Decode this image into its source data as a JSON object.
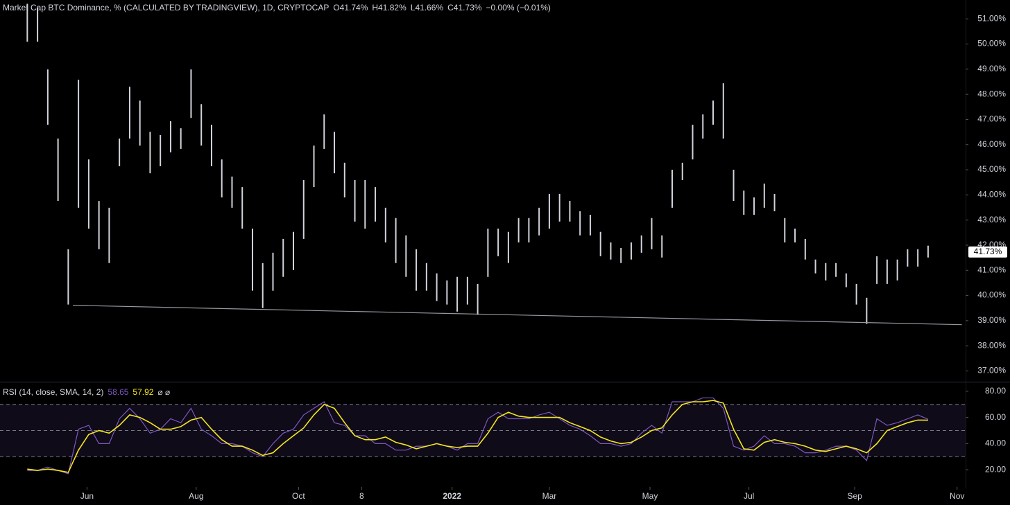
{
  "chart_data": [
    {
      "type": "ohlc",
      "title": "Market Cap BTC Dominance, % (CALCULATED BY TRADINGVIEW), 1D, CRYPTOCAP",
      "ohlc_labels": [
        "O41.74%",
        "H41.82%",
        "L41.66%",
        "C41.73%"
      ],
      "change_label": "−0.00% (−0.01%)",
      "color": "#d1d4dc",
      "x": [
        16,
        22,
        28,
        34,
        40,
        46,
        52,
        58,
        64,
        70,
        76,
        82,
        88,
        94,
        100,
        106,
        112,
        118,
        124,
        130,
        136,
        142,
        148,
        154,
        160,
        166,
        172,
        178,
        184,
        190,
        196,
        202,
        208,
        214,
        220,
        226,
        232,
        238,
        244,
        250,
        256,
        262,
        268,
        274,
        280,
        286,
        292,
        298,
        304,
        310,
        316,
        322,
        328,
        334,
        340,
        346,
        352,
        358,
        364,
        370,
        376,
        382,
        388,
        394,
        400,
        406,
        412,
        418,
        424,
        430,
        436,
        442,
        448,
        454,
        460,
        466,
        472,
        478,
        484,
        490,
        496,
        502,
        508,
        514,
        520,
        526,
        532,
        538,
        544
      ],
      "high": [
        51.6,
        51.46,
        48.99,
        46.24,
        41.84,
        48.58,
        45.41,
        43.76,
        43.49,
        46.24,
        48.3,
        47.75,
        46.51,
        46.38,
        46.93,
        46.65,
        48.99,
        47.61,
        46.79,
        45.41,
        44.73,
        44.31,
        42.66,
        41.29,
        41.7,
        42.25,
        42.53,
        44.59,
        45.96,
        47.2,
        46.51,
        45.28,
        44.59,
        44.59,
        44.31,
        43.49,
        43.08,
        42.39,
        41.84,
        41.29,
        40.88,
        40.6,
        40.74,
        40.74,
        40.46,
        42.66,
        42.66,
        42.53,
        43.08,
        43.08,
        43.49,
        44.04,
        44.04,
        43.76,
        43.35,
        43.21,
        42.53,
        42.11,
        41.89,
        42.11,
        42.39,
        43.08,
        42.39,
        45.0,
        45.28,
        46.79,
        47.2,
        47.75,
        48.44,
        45.0,
        44.17,
        43.9,
        44.45,
        44.04,
        43.08,
        42.66,
        42.25,
        41.43,
        41.29,
        41.29,
        40.88,
        40.46,
        39.91,
        41.56,
        41.43,
        41.43,
        41.84,
        41.84,
        41.98
      ],
      "low": [
        50.09,
        50.09,
        46.79,
        43.76,
        39.64,
        43.49,
        42.66,
        41.84,
        41.29,
        45.14,
        46.24,
        45.96,
        44.86,
        45.14,
        45.69,
        45.83,
        47.06,
        45.96,
        45.14,
        43.9,
        43.49,
        42.66,
        40.19,
        39.5,
        40.19,
        40.74,
        41.01,
        42.25,
        44.31,
        45.83,
        44.86,
        43.9,
        42.94,
        42.66,
        42.94,
        42.11,
        41.29,
        40.74,
        40.19,
        40.19,
        39.78,
        39.64,
        39.36,
        39.64,
        39.23,
        40.74,
        41.56,
        41.29,
        42.11,
        42.11,
        42.39,
        42.66,
        42.94,
        42.94,
        42.39,
        42.39,
        41.56,
        41.43,
        41.29,
        41.43,
        41.7,
        41.84,
        41.51,
        43.49,
        44.59,
        45.41,
        46.24,
        46.79,
        46.24,
        43.76,
        43.21,
        43.21,
        43.49,
        43.35,
        42.11,
        42.11,
        41.43,
        40.88,
        40.6,
        40.74,
        40.33,
        39.64,
        38.87,
        40.46,
        40.46,
        40.6,
        41.15,
        41.15,
        41.51
      ],
      "xlim": [
        0,
        566
      ],
      "ylim": [
        36.6,
        51.75
      ],
      "yticks": [
        {
          "value": 37,
          "label": "37.00%"
        },
        {
          "value": 38,
          "label": "38.00%"
        },
        {
          "value": 39,
          "label": "39.00%"
        },
        {
          "value": 40,
          "label": "40.00%"
        },
        {
          "value": 41,
          "label": "41.00%"
        },
        {
          "value": 42,
          "label": "42.00%"
        },
        {
          "value": 43,
          "label": "43.00%"
        },
        {
          "value": 44,
          "label": "44.00%"
        },
        {
          "value": 45,
          "label": "45.00%"
        },
        {
          "value": 46,
          "label": "46.00%"
        },
        {
          "value": 47,
          "label": "47.00%"
        },
        {
          "value": 48,
          "label": "48.00%"
        },
        {
          "value": 49,
          "label": "49.00%"
        },
        {
          "value": 50,
          "label": "50.00%"
        },
        {
          "value": 51,
          "label": "51.00%"
        }
      ],
      "last_price": {
        "value": 41.73,
        "label": "41.73%"
      },
      "trendline": {
        "x": [
          42.7,
          563.8
        ],
        "y": [
          39.61,
          38.84
        ],
        "color": "#9598a1"
      }
    },
    {
      "type": "line",
      "title": "RSI (14, close, SMA, 14, 2)",
      "legend_values": [
        58.65,
        57.92
      ],
      "legend_icons": "⌀ ⌀",
      "x": [
        16,
        22,
        28,
        34,
        40,
        46,
        52,
        58,
        64,
        70,
        76,
        82,
        88,
        94,
        100,
        106,
        112,
        118,
        124,
        130,
        136,
        142,
        148,
        154,
        160,
        166,
        172,
        178,
        184,
        190,
        196,
        202,
        208,
        214,
        220,
        226,
        232,
        238,
        244,
        250,
        256,
        262,
        268,
        274,
        280,
        286,
        292,
        298,
        304,
        310,
        316,
        322,
        328,
        334,
        340,
        346,
        352,
        358,
        364,
        370,
        376,
        382,
        388,
        394,
        400,
        406,
        412,
        418,
        424,
        430,
        436,
        442,
        448,
        454,
        460,
        466,
        472,
        478,
        484,
        490,
        496,
        502,
        508,
        514,
        520,
        526,
        532,
        538,
        544
      ],
      "series": [
        {
          "color": "#7e57c2",
          "values": [
            19.5,
            19.5,
            22,
            19.5,
            17,
            51,
            54,
            40,
            40,
            59,
            67,
            59,
            48,
            51,
            59,
            56,
            67,
            51,
            46,
            40,
            40,
            38,
            33,
            30,
            40,
            48,
            51,
            62,
            67,
            72,
            56,
            54,
            46,
            46,
            40,
            40,
            35,
            35,
            38,
            38,
            40,
            38,
            35,
            40,
            40,
            59,
            64,
            59,
            59,
            59,
            62,
            64,
            59,
            54,
            51,
            46,
            40,
            40,
            38,
            40,
            48,
            54,
            48,
            72,
            72,
            72,
            75,
            75,
            67,
            38,
            35,
            38,
            46,
            40,
            40,
            38,
            33,
            33,
            35,
            38,
            38,
            35,
            27,
            59,
            54,
            56,
            59,
            62,
            58.65
          ]
        },
        {
          "color": "#f5e71e",
          "values": [
            20.5,
            19.5,
            20.5,
            19.5,
            18,
            35,
            47,
            50,
            48,
            54,
            62,
            60,
            56,
            51,
            51,
            53,
            58,
            60,
            51,
            43,
            38,
            38,
            35,
            31,
            33,
            40,
            46,
            52,
            62,
            70,
            67,
            56,
            46,
            43,
            43,
            45,
            41,
            39,
            36,
            38,
            40,
            38,
            37,
            38,
            38,
            48,
            60,
            64,
            61,
            60,
            60,
            60,
            60,
            56,
            53,
            50,
            45,
            42,
            40,
            41,
            45,
            50,
            52,
            62,
            70,
            72,
            72,
            73,
            71,
            51,
            36,
            35,
            41,
            43,
            41,
            40,
            38,
            35,
            34,
            36,
            38,
            36,
            33,
            40,
            50,
            53,
            56,
            58,
            57.92
          ]
        }
      ],
      "bands": [
        30,
        50,
        70
      ],
      "band_fill": "#7e57c2",
      "band_line": "#787b86",
      "xlim": [
        0,
        566
      ],
      "ylim": [
        8.4,
        86.3
      ],
      "yticks": [
        {
          "value": 20,
          "label": "20.00"
        },
        {
          "value": 40,
          "label": "40.00"
        },
        {
          "value": 60,
          "label": "60.00"
        },
        {
          "value": 80,
          "label": "80.00"
        }
      ],
      "xticks": [
        {
          "value": 51,
          "label": "Jun"
        },
        {
          "value": 115,
          "label": "Aug"
        },
        {
          "value": 175,
          "label": "Oct"
        },
        {
          "value": 212,
          "label": "8"
        },
        {
          "value": 265,
          "label": "2022"
        },
        {
          "value": 322,
          "label": "Mar"
        },
        {
          "value": 381,
          "label": "May"
        },
        {
          "value": 439,
          "label": "Jul"
        },
        {
          "value": 501,
          "label": "Sep"
        },
        {
          "value": 561,
          "label": "Nov"
        }
      ]
    }
  ]
}
